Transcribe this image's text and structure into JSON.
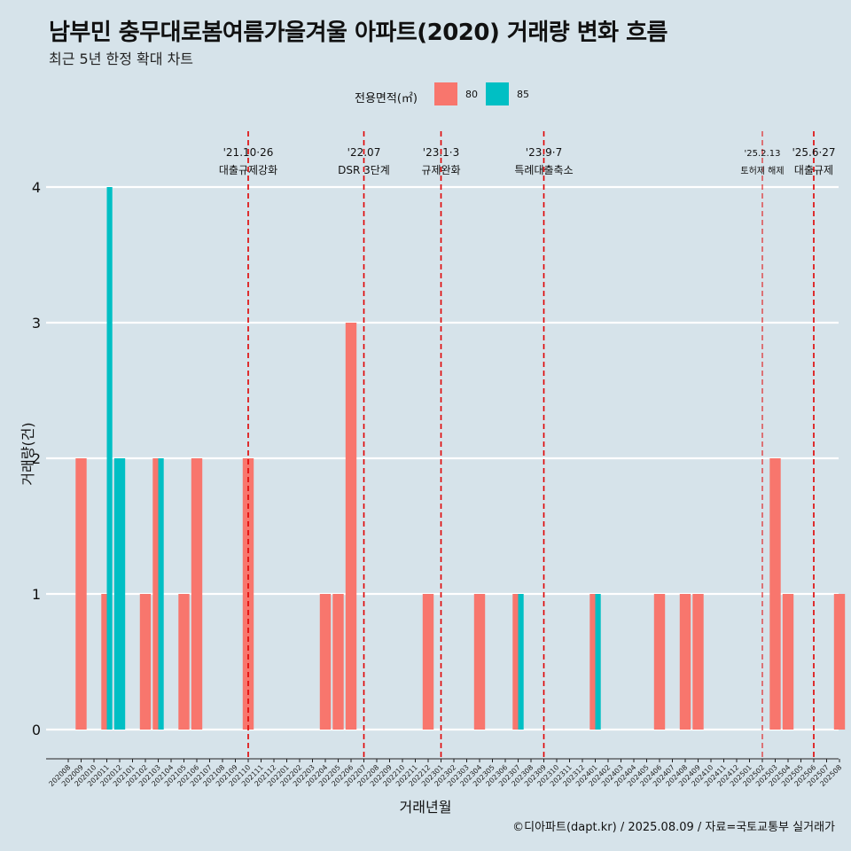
{
  "title": "남부민 충무대로봄여름가을겨울 아파트(2020) 거래량 변화 흐름",
  "subtitle": "최근 5년 한정 확대 차트",
  "legend": {
    "title": "전용면적(㎡)",
    "items": [
      {
        "label": "80",
        "color": "#F8766D"
      },
      {
        "label": "85",
        "color": "#00BFC4"
      }
    ]
  },
  "caption": "©디아파트(dapt.kr) / 2025.08.09 / 자료=국토교통부 실거래가",
  "chart_data": {
    "type": "bar",
    "xlabel": "거래년월",
    "ylabel": "거래량(건)",
    "ylim": [
      0,
      4
    ],
    "yticks": [
      0,
      1,
      2,
      3,
      4
    ],
    "grid": true,
    "legend_position": "top",
    "categories": [
      "202008",
      "202009",
      "202010",
      "202011",
      "202012",
      "202101",
      "202102",
      "202103",
      "202104",
      "202105",
      "202106",
      "202107",
      "202108",
      "202109",
      "202110",
      "202111",
      "202112",
      "202201",
      "202202",
      "202203",
      "202204",
      "202205",
      "202206",
      "202207",
      "202208",
      "202209",
      "202210",
      "202211",
      "202212",
      "202301",
      "202302",
      "202303",
      "202304",
      "202305",
      "202306",
      "202307",
      "202308",
      "202309",
      "202310",
      "202311",
      "202312",
      "202401",
      "202402",
      "202403",
      "202404",
      "202405",
      "202406",
      "202407",
      "202408",
      "202409",
      "202410",
      "202411",
      "202412",
      "202501",
      "202502",
      "202503",
      "202504",
      "202505",
      "202506",
      "202507",
      "202508"
    ],
    "series": [
      {
        "name": "80",
        "color": "#F8766D",
        "values": {
          "202009": 2,
          "202011": 1,
          "202102": 1,
          "202103": 2,
          "202105": 1,
          "202106": 2,
          "202110": 2,
          "202204": 1,
          "202205": 1,
          "202206": 3,
          "202212": 1,
          "202304": 1,
          "202307": 1,
          "202401": 1,
          "202406": 1,
          "202408": 1,
          "202409": 1,
          "202503": 2,
          "202504": 1,
          "202508": 1
        }
      },
      {
        "name": "85",
        "color": "#00BFC4",
        "values": {
          "202011": 4,
          "202012": 2,
          "202103": 2,
          "202307": 1,
          "202401": 1
        }
      }
    ],
    "annotations": [
      {
        "category": "202110",
        "line1": "'21.10·26",
        "line2": "대출규제강화",
        "small": false
      },
      {
        "category": "202207",
        "line1": "'22.07",
        "line2": "DSR 3단계",
        "small": false
      },
      {
        "category": "202301",
        "line1": "'23.1·3",
        "line2": "규제완화",
        "small": false
      },
      {
        "category": "202309",
        "line1": "'23.9·7",
        "line2": "특례대출축소",
        "small": false
      },
      {
        "category": "202502",
        "line1": "'25.2.13",
        "line2": "토허제 해제",
        "small": true
      },
      {
        "category": "202506",
        "line1": "'25.6·27",
        "line2": "대출규제",
        "small": false
      }
    ]
  }
}
